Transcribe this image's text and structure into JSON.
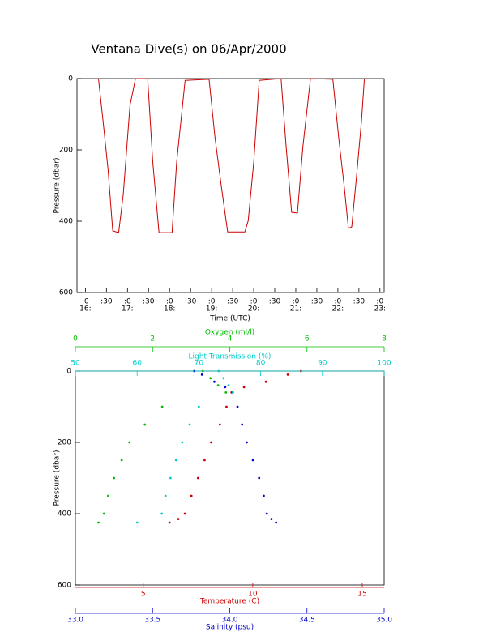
{
  "chart_data": [
    {
      "type": "line",
      "title": "Ventana Dive(s) on 06/Apr/2000",
      "xlabel": "Time (UTC)",
      "ylabel": "Pressure (dbar)",
      "xlim": [
        15.8,
        23.1
      ],
      "xticks": [
        {
          "value": 16,
          "label": ":0",
          "hour": "16:"
        },
        {
          "value": 16.5,
          "label": ":30"
        },
        {
          "value": 17,
          "label": ":0",
          "hour": "17:"
        },
        {
          "value": 17.5,
          "label": ":30"
        },
        {
          "value": 18,
          "label": ":0",
          "hour": "18:"
        },
        {
          "value": 18.5,
          "label": ":30"
        },
        {
          "value": 19,
          "label": ":0",
          "hour": "19:"
        },
        {
          "value": 19.5,
          "label": ":30"
        },
        {
          "value": 20,
          "label": ":0",
          "hour": "20:"
        },
        {
          "value": 20.5,
          "label": ":30"
        },
        {
          "value": 21,
          "label": ":0",
          "hour": "21:"
        },
        {
          "value": 21.5,
          "label": ":30"
        },
        {
          "value": 22,
          "label": ":0",
          "hour": "22:"
        },
        {
          "value": 22.5,
          "label": ":30"
        },
        {
          "value": 23,
          "label": ":0",
          "hour": "23:"
        }
      ],
      "ylim": [
        0,
        600
      ],
      "yticks": [
        0,
        200,
        400,
        600
      ],
      "y_reversed": true,
      "color": "#cc0000",
      "x": [
        16.31,
        16.42,
        16.54,
        16.65,
        16.79,
        16.9,
        17.06,
        17.19,
        17.48,
        17.6,
        17.75,
        18.06,
        18.17,
        18.37,
        18.94,
        19.08,
        19.23,
        19.38,
        19.79,
        19.87,
        20.0,
        20.13,
        20.65,
        20.77,
        20.9,
        21.04,
        21.17,
        21.35,
        21.88,
        22.02,
        22.15,
        22.25,
        22.33,
        22.44,
        22.56,
        22.63
      ],
      "values": [
        0,
        120,
        257,
        427,
        432,
        325,
        75,
        0,
        0,
        234,
        432,
        432,
        234,
        5,
        2,
        166,
        302,
        430,
        430,
        398,
        234,
        5,
        0,
        189,
        375,
        377,
        189,
        0,
        2,
        166,
        302,
        420,
        416,
        280,
        120,
        0
      ]
    },
    {
      "type": "scatter",
      "ylabel": "Pressure (dbar)",
      "ylim": [
        0,
        600
      ],
      "yticks": [
        0,
        200,
        400,
        600
      ],
      "y_reversed": true,
      "series": [
        {
          "name": "Temperature (C)",
          "color": "#cc0000",
          "xlim": [
            1.9,
            16
          ],
          "xticks": [
            5,
            10,
            15
          ],
          "x": [
            12.2,
            11.6,
            10.6,
            9.6,
            9.03,
            8.8,
            8.5,
            8.1,
            7.8,
            7.5,
            7.2,
            6.9,
            6.6,
            6.2
          ],
          "y": [
            0,
            10,
            30,
            45,
            60,
            100,
            150,
            200,
            250,
            300,
            350,
            400,
            415,
            425
          ]
        },
        {
          "name": "Salinity (psu)",
          "color": "#0000cc",
          "xlim": [
            33.0,
            35.0
          ],
          "xticks": [
            {
              "value": 33.0,
              "label": "33.0"
            },
            33.5,
            {
              "value": 34.0,
              "label": "34.0"
            },
            34.5,
            {
              "value": 35.0,
              "label": "35.0"
            }
          ],
          "x": [
            33.77,
            33.82,
            33.9,
            33.97,
            34.02,
            34.05,
            34.08,
            34.11,
            34.15,
            34.19,
            34.22,
            34.24,
            34.27,
            34.3
          ],
          "y": [
            0,
            10,
            30,
            45,
            60,
            100,
            150,
            200,
            250,
            300,
            350,
            400,
            415,
            425
          ]
        },
        {
          "name": "Oxygen (ml/l)",
          "color": "#00bb00",
          "xlim": [
            0,
            8
          ],
          "xticks": [
            0,
            2,
            4,
            6,
            8
          ],
          "x": [
            3.3,
            3.5,
            3.7,
            3.9,
            2.25,
            1.8,
            1.4,
            1.2,
            1.0,
            0.85,
            0.74,
            0.6
          ],
          "y": [
            0,
            20,
            40,
            60,
            100,
            150,
            200,
            250,
            300,
            350,
            400,
            425
          ]
        },
        {
          "name": "Light Transmission (%)",
          "color": "#00cccc",
          "xlim": [
            50,
            100
          ],
          "xticks": [
            50,
            60,
            70,
            80,
            90,
            100
          ],
          "x": [
            73.2,
            74,
            74.8,
            75.5,
            70,
            68.5,
            67.3,
            66.3,
            65.4,
            64.6,
            64,
            60
          ],
          "y": [
            0,
            20,
            40,
            60,
            100,
            150,
            200,
            250,
            300,
            350,
            400,
            425
          ]
        }
      ]
    }
  ]
}
